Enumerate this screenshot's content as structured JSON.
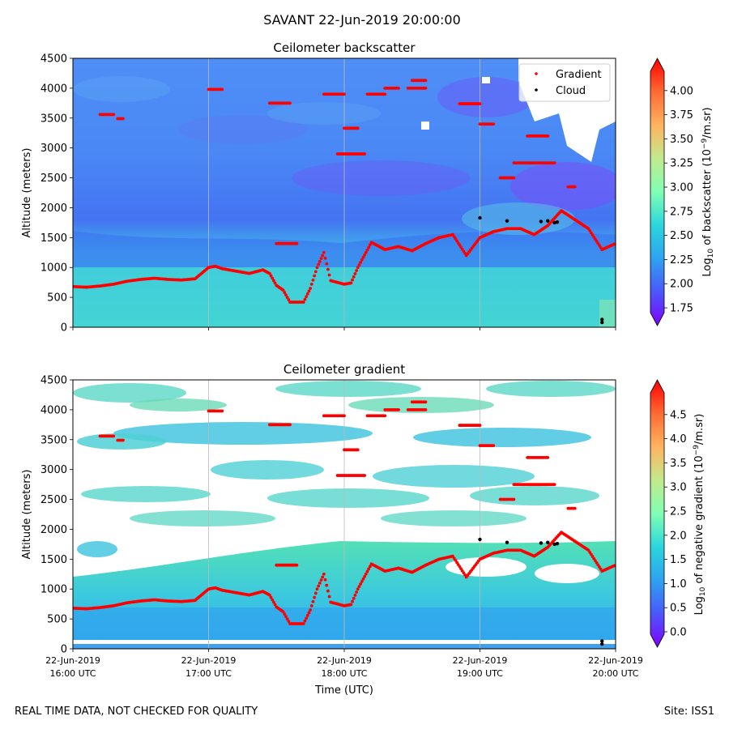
{
  "title": "SAVANT 22-Jun-2019 20:00:00",
  "footer_left": "REAL TIME DATA, NOT CHECKED FOR QUALITY",
  "footer_right": "Site: ISS1",
  "colors": {
    "gradient_marker": "#ff0000",
    "cloud_marker": "#000000",
    "grid": "#bbbbbb"
  },
  "chart_data": [
    {
      "type": "heatmap",
      "title": "Ceilometer backscatter",
      "xlabel": "",
      "ylabel": "Altitude (meters)",
      "ylim": [
        0,
        4500
      ],
      "xlim_hours_utc": [
        16,
        20
      ],
      "y_ticks": [
        "0",
        "500",
        "1000",
        "1500",
        "2000",
        "2500",
        "3000",
        "3500",
        "4000",
        "4500"
      ],
      "colorbar": {
        "label": "Log",
        "label_sub": "10",
        "label_rest": " of backscatter (10",
        "label_sup": "−9",
        "label_end": "/m.sr)",
        "range": [
          1.7,
          4.2
        ],
        "ticks": [
          "1.75",
          "2.00",
          "2.25",
          "2.50",
          "2.75",
          "3.00",
          "3.25",
          "3.50",
          "3.75",
          "4.00"
        ],
        "tick_values": [
          1.75,
          2.0,
          2.25,
          2.5,
          2.75,
          3.0,
          3.25,
          3.5,
          3.75,
          4.0
        ]
      },
      "legend": {
        "placement": "top-right",
        "entries": [
          "Gradient",
          "Cloud"
        ]
      }
    },
    {
      "type": "heatmap",
      "title": "Ceilometer gradient",
      "xlabel": "Time (UTC)",
      "ylabel": "Altitude (meters)",
      "ylim": [
        0,
        4500
      ],
      "xlim_hours_utc": [
        16,
        20
      ],
      "y_ticks": [
        "0",
        "500",
        "1000",
        "1500",
        "2000",
        "2500",
        "3000",
        "3500",
        "4000",
        "4500"
      ],
      "x_ticks": [
        {
          "date": "22-Jun-2019",
          "time": "16:00 UTC"
        },
        {
          "date": "22-Jun-2019",
          "time": "17:00 UTC"
        },
        {
          "date": "22-Jun-2019",
          "time": "18:00 UTC"
        },
        {
          "date": "22-Jun-2019",
          "time": "19:00 UTC"
        },
        {
          "date": "22-Jun-2019",
          "time": "20:00 UTC"
        }
      ],
      "colorbar": {
        "label": "Log",
        "label_sub": "10",
        "label_rest": " of negative gradient (10",
        "label_sup": "−9",
        "label_end": "/m.sr)",
        "range": [
          -0.05,
          4.95
        ],
        "ticks": [
          "0.0",
          "0.5",
          "1.0",
          "1.5",
          "2.0",
          "2.5",
          "3.0",
          "3.5",
          "4.0",
          "4.5"
        ],
        "tick_values": [
          0.0,
          0.5,
          1.0,
          1.5,
          2.0,
          2.5,
          3.0,
          3.5,
          4.0,
          4.5
        ]
      }
    }
  ],
  "gradient_series": {
    "name": "Gradient",
    "boundary_layer": [
      [
        16.0,
        680
      ],
      [
        16.1,
        670
      ],
      [
        16.2,
        690
      ],
      [
        16.3,
        720
      ],
      [
        16.4,
        770
      ],
      [
        16.5,
        800
      ],
      [
        16.6,
        820
      ],
      [
        16.7,
        800
      ],
      [
        16.8,
        790
      ],
      [
        16.9,
        810
      ],
      [
        17.0,
        1000
      ],
      [
        17.05,
        1020
      ],
      [
        17.1,
        980
      ],
      [
        17.2,
        940
      ],
      [
        17.3,
        900
      ],
      [
        17.4,
        960
      ],
      [
        17.45,
        900
      ],
      [
        17.5,
        700
      ],
      [
        17.55,
        620
      ],
      [
        17.6,
        420
      ],
      [
        17.7,
        420
      ],
      [
        17.75,
        650
      ],
      [
        17.8,
        1000
      ],
      [
        17.85,
        1250
      ],
      [
        17.9,
        780
      ],
      [
        18.0,
        720
      ],
      [
        18.05,
        740
      ],
      [
        18.1,
        1000
      ],
      [
        18.2,
        1420
      ],
      [
        18.3,
        1300
      ],
      [
        18.4,
        1350
      ],
      [
        18.5,
        1280
      ],
      [
        18.6,
        1400
      ],
      [
        18.7,
        1500
      ],
      [
        18.8,
        1550
      ],
      [
        18.9,
        1200
      ],
      [
        19.0,
        1500
      ],
      [
        19.1,
        1600
      ],
      [
        19.2,
        1650
      ],
      [
        19.3,
        1650
      ],
      [
        19.4,
        1550
      ],
      [
        19.5,
        1700
      ],
      [
        19.6,
        1950
      ],
      [
        19.7,
        1800
      ],
      [
        19.8,
        1650
      ],
      [
        19.9,
        1300
      ],
      [
        20.0,
        1400
      ]
    ],
    "segments": [
      [
        16.2,
        16.3,
        3560
      ],
      [
        16.33,
        16.37,
        3490
      ],
      [
        17.0,
        17.1,
        3980
      ],
      [
        17.45,
        17.6,
        3750
      ],
      [
        17.5,
        17.65,
        1400
      ],
      [
        17.85,
        18.0,
        3900
      ],
      [
        18.0,
        18.1,
        3330
      ],
      [
        17.95,
        18.15,
        2900
      ],
      [
        18.17,
        18.3,
        3900
      ],
      [
        18.3,
        18.4,
        4000
      ],
      [
        18.47,
        18.6,
        4000
      ],
      [
        18.5,
        18.6,
        4130
      ],
      [
        18.85,
        19.0,
        3740
      ],
      [
        19.0,
        19.1,
        3400
      ],
      [
        19.15,
        19.25,
        2500
      ],
      [
        19.25,
        19.55,
        2750
      ],
      [
        19.35,
        19.5,
        3200
      ],
      [
        19.65,
        19.7,
        2350
      ]
    ]
  },
  "cloud_series": {
    "name": "Cloud",
    "points": [
      [
        19.0,
        1830
      ],
      [
        19.2,
        1780
      ],
      [
        19.45,
        1770
      ],
      [
        19.5,
        1780
      ],
      [
        19.55,
        1750
      ],
      [
        19.57,
        1760
      ],
      [
        19.9,
        80
      ],
      [
        19.9,
        130
      ]
    ]
  }
}
